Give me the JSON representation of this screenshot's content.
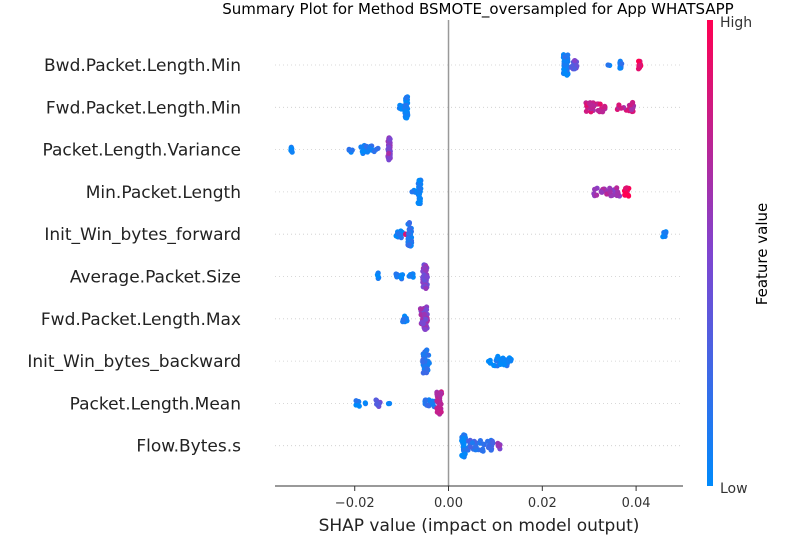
{
  "chart_data": {
    "type": "scatter",
    "subtype": "shap-beeswarm-summary",
    "title": "Summary Plot for Method BSMOTE_oversampled for App WHATSAPP",
    "xlabel": "SHAP value (impact on model output)",
    "xlim": [
      -0.037,
      0.05
    ],
    "x_ticks": [
      -0.02,
      0.0,
      0.02,
      0.04
    ],
    "x_tick_labels": [
      "−0.02",
      "0.00",
      "0.02",
      "0.04"
    ],
    "zero_line": 0.0,
    "colorbar": {
      "label": "Feature value",
      "high_label": "High",
      "low_label": "Low",
      "low_color": "#008afb",
      "high_color": "#ff0052"
    },
    "features": [
      {
        "name": "Bwd.Packet.Length.Min",
        "clusters": [
          {
            "x": [
              0.0245,
              0.0255
            ],
            "spread": 0.75,
            "n": 60,
            "level": 0.05
          },
          {
            "x": [
              0.0255,
              0.0275
            ],
            "spread": 0.35,
            "n": 14,
            "level": 0.4
          },
          {
            "x": [
              0.034,
              0.0345
            ],
            "spread": 0.05,
            "n": 2,
            "level": 0.05
          },
          {
            "x": [
              0.0365,
              0.037
            ],
            "spread": 0.3,
            "n": 8,
            "level": 0.1
          },
          {
            "x": [
              0.0405,
              0.041
            ],
            "spread": 0.3,
            "n": 12,
            "level": 0.95
          }
        ]
      },
      {
        "name": "Fwd.Packet.Length.Min",
        "clusters": [
          {
            "x": [
              -0.0105,
              -0.0095
            ],
            "spread": 0.15,
            "n": 10,
            "level": 0.05
          },
          {
            "x": [
              -0.0093,
              -0.0087
            ],
            "spread": 0.8,
            "n": 40,
            "level": 0.05
          },
          {
            "x": [
              0.029,
              0.0335
            ],
            "spread": 0.35,
            "n": 30,
            "level": 0.8
          },
          {
            "x": [
              0.036,
              0.0395
            ],
            "spread": 0.35,
            "n": 24,
            "level": 0.75
          }
        ]
      },
      {
        "name": "Packet.Length.Variance",
        "clusters": [
          {
            "x": [
              -0.0337,
              -0.0333
            ],
            "spread": 0.2,
            "n": 6,
            "level": 0.05
          },
          {
            "x": [
              -0.0212,
              -0.0205
            ],
            "spread": 0.2,
            "n": 5,
            "level": 0.05
          },
          {
            "x": [
              -0.019,
              -0.0145
            ],
            "spread": 0.3,
            "n": 22,
            "level": 0.1
          },
          {
            "x": [
              -0.0129,
              -0.0124
            ],
            "spread": 0.85,
            "n": 40,
            "level": 0.55
          }
        ]
      },
      {
        "name": "Min.Packet.Length",
        "clusters": [
          {
            "x": [
              -0.0078,
              -0.0068
            ],
            "spread": 0.12,
            "n": 6,
            "level": 0.05
          },
          {
            "x": [
              -0.0065,
              -0.0059
            ],
            "spread": 0.85,
            "n": 44,
            "level": 0.05
          },
          {
            "x": [
              0.031,
              0.0365
            ],
            "spread": 0.3,
            "n": 30,
            "level": 0.6
          },
          {
            "x": [
              0.0375,
              0.0385
            ],
            "spread": 0.3,
            "n": 12,
            "level": 0.95
          }
        ]
      },
      {
        "name": "Init_Win_bytes_forward",
        "clusters": [
          {
            "x": [
              -0.0112,
              -0.0098
            ],
            "spread": 0.25,
            "n": 14,
            "level": 0.05
          },
          {
            "x": [
              -0.0093,
              -0.0088
            ],
            "spread": 0.05,
            "n": 2,
            "level": 0.95
          },
          {
            "x": [
              -0.0087,
              -0.0078
            ],
            "spread": 0.85,
            "n": 40,
            "level": 0.15
          },
          {
            "x": [
              0.0455,
              0.0465
            ],
            "spread": 0.2,
            "n": 8,
            "level": 0.05
          }
        ]
      },
      {
        "name": "Average.Packet.Size",
        "clusters": [
          {
            "x": [
              -0.0152,
              -0.0148
            ],
            "spread": 0.3,
            "n": 6,
            "level": 0.05
          },
          {
            "x": [
              -0.0112,
              -0.0098
            ],
            "spread": 0.2,
            "n": 10,
            "level": 0.05
          },
          {
            "x": [
              -0.0085,
              -0.0075
            ],
            "spread": 0.2,
            "n": 8,
            "level": 0.05
          },
          {
            "x": [
              -0.0055,
              -0.0045
            ],
            "spread": 0.85,
            "n": 44,
            "level": 0.5
          }
        ]
      },
      {
        "name": "Fwd.Packet.Length.Max",
        "clusters": [
          {
            "x": [
              -0.0098,
              -0.0088
            ],
            "spread": 0.25,
            "n": 10,
            "level": 0.05
          },
          {
            "x": [
              -0.006,
              -0.0045
            ],
            "spread": 0.85,
            "n": 44,
            "level": 0.55
          }
        ]
      },
      {
        "name": "Init_Win_bytes_backward",
        "clusters": [
          {
            "x": [
              -0.0055,
              -0.004
            ],
            "spread": 0.85,
            "n": 44,
            "level": 0.15
          },
          {
            "x": [
              0.0085,
              0.0135
            ],
            "spread": 0.35,
            "n": 34,
            "level": 0.05
          }
        ]
      },
      {
        "name": "Packet.Length.Mean",
        "clusters": [
          {
            "x": [
              -0.02,
              -0.019
            ],
            "spread": 0.2,
            "n": 6,
            "level": 0.05
          },
          {
            "x": [
              -0.018,
              -0.0175
            ],
            "spread": 0.05,
            "n": 2,
            "level": 0.05
          },
          {
            "x": [
              -0.0155,
              -0.0145
            ],
            "spread": 0.25,
            "n": 8,
            "level": 0.4
          },
          {
            "x": [
              -0.013,
              -0.0125
            ],
            "spread": 0.05,
            "n": 2,
            "level": 0.05
          },
          {
            "x": [
              -0.0055,
              -0.003
            ],
            "spread": 0.3,
            "n": 14,
            "level": 0.1
          },
          {
            "x": [
              -0.0025,
              -0.0015
            ],
            "spread": 0.85,
            "n": 44,
            "level": 0.7
          }
        ]
      },
      {
        "name": "Flow.Bytes.s",
        "clusters": [
          {
            "x": [
              0.0028,
              0.0036
            ],
            "spread": 0.85,
            "n": 44,
            "level": 0.05
          },
          {
            "x": [
              0.004,
              0.0095
            ],
            "spread": 0.4,
            "n": 34,
            "level": 0.2
          },
          {
            "x": [
              0.0105,
              0.011
            ],
            "spread": 0.3,
            "n": 6,
            "level": 0.55
          }
        ]
      }
    ]
  }
}
